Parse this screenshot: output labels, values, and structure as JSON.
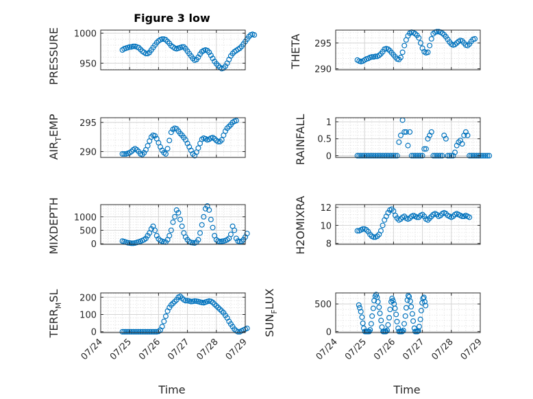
{
  "figure": {
    "title": "Figure 3 low"
  },
  "colors": {
    "series": "#0072BD",
    "axis": "#262626",
    "grid": "#d4d4d4"
  },
  "chart_data": [
    {
      "id": "pressure",
      "type": "scatter",
      "title": "Figure 3 low",
      "ylabel": "PRESSURE",
      "xlabel": "",
      "xlim": [
        "2012-07-24",
        "2012-07-29"
      ],
      "ylim": [
        939,
        1005
      ],
      "yticks": [
        950,
        1000
      ],
      "x_start": "2012-07-24T18:00",
      "x_step_hours": 1.5,
      "values": [
        972,
        974,
        975,
        976,
        977,
        977,
        978,
        978,
        977,
        976,
        973,
        970,
        968,
        966,
        966,
        968,
        972,
        976,
        980,
        984,
        987,
        989,
        990,
        990,
        989,
        986,
        983,
        979,
        977,
        975,
        974,
        975,
        976,
        977,
        977,
        974,
        970,
        966,
        962,
        958,
        955,
        956,
        960,
        965,
        969,
        971,
        972,
        971,
        968,
        963,
        958,
        953,
        949,
        946,
        943,
        941,
        942,
        945,
        950,
        956,
        962,
        966,
        969,
        971,
        973,
        975,
        978,
        982,
        986,
        990,
        994,
        997,
        998,
        997
      ],
      "grid": true
    },
    {
      "id": "theta",
      "type": "scatter",
      "title": "",
      "ylabel": "THETA",
      "xlabel": "",
      "xlim": [
        "2012-07-24",
        "2012-07-29"
      ],
      "ylim": [
        289.8,
        297.5
      ],
      "yticks": [
        290,
        295
      ],
      "x_start": "2012-07-24T18:00",
      "x_step_hours": 1.5,
      "values": [
        291.7,
        291.5,
        291.4,
        291.5,
        291.7,
        291.9,
        292.0,
        292.2,
        292.3,
        292.3,
        292.4,
        292.4,
        292.6,
        292.9,
        293.3,
        293.8,
        293.9,
        293.8,
        293.5,
        293.1,
        292.7,
        292.3,
        291.9,
        291.8,
        292.2,
        293.2,
        294.5,
        295.6,
        296.4,
        296.9,
        297.1,
        297.0,
        296.8,
        296.5,
        296.0,
        295.0,
        294.0,
        293.3,
        293.1,
        293.2,
        294.5,
        295.8,
        296.8,
        297.1,
        297.2,
        297.2,
        297.1,
        296.9,
        296.6,
        296.2,
        295.7,
        295.2,
        294.8,
        294.6,
        294.7,
        295.0,
        295.3,
        295.5,
        295.4,
        295.0,
        294.6,
        294.5,
        294.8,
        295.3,
        295.7,
        295.8
      ],
      "grid": true
    },
    {
      "id": "air_temp",
      "type": "scatter",
      "title": "",
      "ylabel": "AIR_TEMP",
      "xlabel": "",
      "xlim": [
        "2012-07-24",
        "2012-07-29"
      ],
      "ylim": [
        289,
        295.8
      ],
      "yticks": [
        290,
        295
      ],
      "x_start": "2012-07-24T18:00",
      "x_step_hours": 1.5,
      "values": [
        289.6,
        289.6,
        289.6,
        289.7,
        289.8,
        290.0,
        290.3,
        290.5,
        290.3,
        290.0,
        289.6,
        289.5,
        289.8,
        290.3,
        291.0,
        291.8,
        292.5,
        292.8,
        292.7,
        292.2,
        291.5,
        290.8,
        290.2,
        289.8,
        289.6,
        290.5,
        291.9,
        293.3,
        293.8,
        294.0,
        293.9,
        293.5,
        293.1,
        292.8,
        292.4,
        292.0,
        291.4,
        290.8,
        290.2,
        289.6,
        289.3,
        289.9,
        290.6,
        291.4,
        292.1,
        292.3,
        292.2,
        292.0,
        292.1,
        292.3,
        292.4,
        292.2,
        291.9,
        291.7,
        291.7,
        292.0,
        292.8,
        293.5,
        294.0,
        294.3,
        294.6,
        295.0,
        295.2,
        295.3
      ],
      "grid": true
    },
    {
      "id": "rainfall",
      "type": "scatter",
      "title": "",
      "ylabel": "RAINFALL",
      "xlabel": "",
      "xlim": [
        "2012-07-24",
        "2012-07-29"
      ],
      "ylim": [
        -0.05,
        1.12
      ],
      "yticks": [
        0,
        0.5,
        1
      ],
      "x_start": "2012-07-24T18:00",
      "x_step_hours": 1.5,
      "values": [
        0,
        0,
        0,
        0,
        0,
        0,
        0,
        0,
        0,
        0,
        0,
        0,
        0,
        0,
        0,
        0,
        0,
        0,
        0,
        0,
        0,
        0,
        0,
        0.4,
        0.6,
        1.05,
        0.7,
        0.7,
        0.3,
        0.7,
        0,
        0,
        0,
        0,
        0,
        0,
        0,
        0.2,
        0.2,
        0.5,
        0.6,
        0.7,
        0,
        0,
        0,
        0,
        0,
        0,
        0.6,
        0.5,
        0,
        0,
        0,
        0,
        0.1,
        0.3,
        0.4,
        0.45,
        0.35,
        0.6,
        0.7,
        0.6,
        0,
        0,
        0,
        0,
        0,
        0,
        0,
        0,
        0,
        0,
        0,
        0
      ],
      "grid": true
    },
    {
      "id": "mixdepth",
      "type": "scatter",
      "title": "",
      "ylabel": "MIXDEPTH",
      "xlabel": "",
      "xlim": [
        "2012-07-24",
        "2012-07-29"
      ],
      "ylim": [
        -20,
        1450
      ],
      "yticks": [
        0,
        500,
        1000
      ],
      "x_start": "2012-07-24T18:00",
      "x_step_hours": 1.5,
      "values": [
        100,
        80,
        60,
        40,
        30,
        20,
        20,
        30,
        50,
        70,
        90,
        120,
        150,
        200,
        300,
        400,
        550,
        650,
        500,
        300,
        180,
        120,
        90,
        70,
        60,
        150,
        300,
        500,
        800,
        1000,
        1250,
        1150,
        900,
        650,
        400,
        250,
        150,
        80,
        50,
        40,
        30,
        60,
        150,
        400,
        700,
        1000,
        1300,
        1400,
        1250,
        900,
        600,
        300,
        150,
        100,
        80,
        90,
        100,
        120,
        150,
        200,
        350,
        650,
        500,
        200,
        100,
        80,
        90,
        150,
        250,
        380
      ],
      "grid": true
    },
    {
      "id": "h2omixra",
      "type": "scatter",
      "title": "",
      "ylabel": "H2OMIXRA",
      "xlabel": "",
      "xlim": [
        "2012-07-24",
        "2012-07-29"
      ],
      "ylim": [
        7.9,
        12.3
      ],
      "yticks": [
        8,
        10,
        12
      ],
      "x_start": "2012-07-24T18:00",
      "x_step_hours": 1.5,
      "values": [
        9.4,
        9.4,
        9.5,
        9.6,
        9.6,
        9.5,
        9.3,
        9.0,
        8.8,
        8.7,
        8.7,
        8.8,
        9.0,
        9.4,
        10.0,
        10.6,
        11.0,
        11.4,
        11.7,
        11.8,
        11.6,
        11.1,
        10.8,
        10.6,
        10.7,
        10.9,
        11.0,
        10.8,
        10.7,
        10.8,
        11.0,
        11.1,
        11.0,
        10.9,
        10.9,
        11.1,
        11.2,
        11.0,
        10.7,
        10.6,
        10.8,
        11.0,
        11.2,
        11.3,
        11.2,
        11.0,
        11.1,
        11.3,
        11.4,
        11.3,
        11.1,
        11.0,
        10.9,
        11.0,
        11.2,
        11.3,
        11.2,
        11.1,
        11.0,
        11.0,
        11.1,
        11.0,
        10.9
      ],
      "grid": true
    },
    {
      "id": "terr_msl",
      "type": "scatter",
      "title": "",
      "ylabel": "TERR_MSL",
      "xlabel": "Time",
      "xlim": [
        "2012-07-24",
        "2012-07-29"
      ],
      "ylim": [
        -5,
        225
      ],
      "yticks": [
        0,
        100,
        200
      ],
      "xticklabels": [
        "07/24",
        "07/25",
        "07/26",
        "07/27",
        "07/28",
        "07/29"
      ],
      "x_start": "2012-07-24T18:00",
      "x_step_hours": 1.5,
      "values": [
        0,
        0,
        0,
        0,
        0,
        0,
        0,
        0,
        0,
        0,
        0,
        0,
        0,
        0,
        0,
        0,
        0,
        0,
        0,
        0,
        2,
        10,
        30,
        60,
        90,
        120,
        140,
        155,
        165,
        175,
        185,
        200,
        205,
        195,
        185,
        180,
        180,
        178,
        175,
        176,
        178,
        177,
        175,
        172,
        170,
        168,
        172,
        175,
        178,
        176,
        170,
        160,
        150,
        140,
        130,
        120,
        110,
        95,
        80,
        60,
        45,
        30,
        15,
        5,
        0,
        0,
        5,
        10,
        15,
        20
      ],
      "grid": true
    },
    {
      "id": "sun_flux",
      "type": "scatter",
      "title": "",
      "ylabel": "SUN_FLUX",
      "xlabel": "Time",
      "xlim": [
        "2012-07-24",
        "2012-07-29"
      ],
      "ylim": [
        -20,
        700
      ],
      "yticks": [
        0,
        500
      ],
      "xticklabels": [
        "07/24",
        "07/25",
        "07/26",
        "07/27",
        "07/28",
        "07/29"
      ],
      "points": [
        [
          0.8,
          480
        ],
        [
          0.83,
          430
        ],
        [
          0.87,
          360
        ],
        [
          0.91,
          260
        ],
        [
          0.94,
          150
        ],
        [
          0.97,
          60
        ],
        [
          1.01,
          0
        ],
        [
          1.05,
          0
        ],
        [
          1.09,
          0
        ],
        [
          1.12,
          0
        ],
        [
          1.16,
          0
        ],
        [
          1.19,
          30
        ],
        [
          1.23,
          140
        ],
        [
          1.26,
          280
        ],
        [
          1.3,
          420
        ],
        [
          1.33,
          560
        ],
        [
          1.37,
          640
        ],
        [
          1.4,
          670
        ],
        [
          1.43,
          620
        ],
        [
          1.46,
          540
        ],
        [
          1.5,
          440
        ],
        [
          1.53,
          330
        ],
        [
          1.57,
          200
        ],
        [
          1.6,
          80
        ],
        [
          1.64,
          0
        ],
        [
          1.67,
          0
        ],
        [
          1.71,
          0
        ],
        [
          1.74,
          0
        ],
        [
          1.78,
          20
        ],
        [
          1.81,
          120
        ],
        [
          1.85,
          250
        ],
        [
          1.88,
          400
        ],
        [
          1.92,
          540
        ],
        [
          1.95,
          600
        ],
        [
          1.98,
          560
        ],
        [
          2.02,
          500
        ],
        [
          2.05,
          420
        ],
        [
          2.09,
          310
        ],
        [
          2.12,
          180
        ],
        [
          2.16,
          60
        ],
        [
          2.19,
          0
        ],
        [
          2.23,
          0
        ],
        [
          2.27,
          0
        ],
        [
          2.3,
          0
        ],
        [
          2.34,
          20
        ],
        [
          2.37,
          140
        ],
        [
          2.41,
          280
        ],
        [
          2.44,
          430
        ],
        [
          2.48,
          570
        ],
        [
          2.51,
          650
        ],
        [
          2.54,
          630
        ],
        [
          2.58,
          550
        ],
        [
          2.61,
          450
        ],
        [
          2.65,
          320
        ],
        [
          2.68,
          190
        ],
        [
          2.72,
          60
        ],
        [
          2.75,
          0
        ],
        [
          2.79,
          0
        ],
        [
          2.83,
          0
        ],
        [
          2.86,
          10
        ],
        [
          2.89,
          90
        ],
        [
          2.93,
          220
        ],
        [
          2.96,
          380
        ],
        [
          2.99,
          520
        ],
        [
          3.02,
          600
        ],
        [
          3.05,
          620
        ],
        [
          3.08,
          540
        ],
        [
          3.11,
          470
        ]
      ],
      "grid": true
    }
  ]
}
